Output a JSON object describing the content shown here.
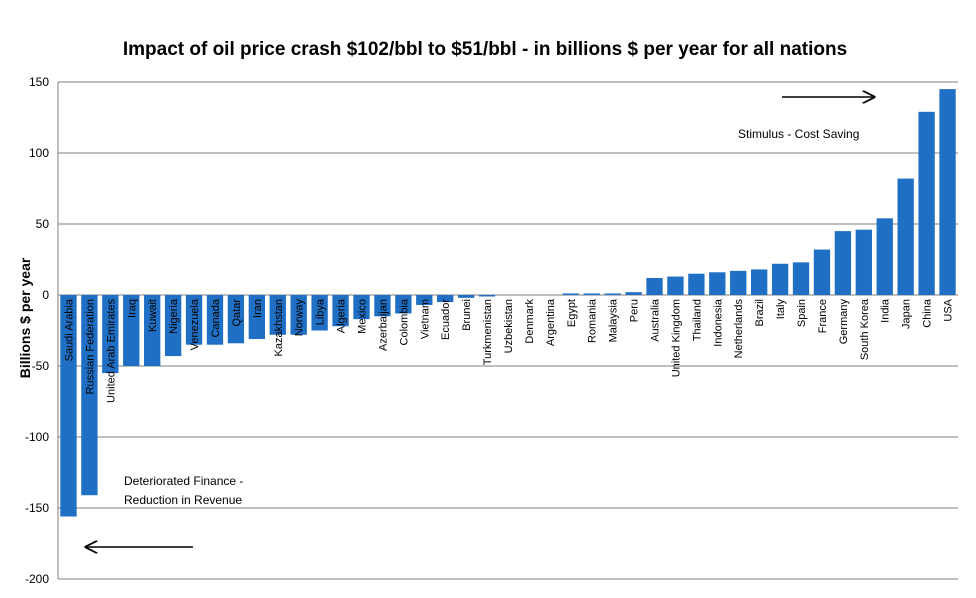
{
  "chart_data": {
    "type": "bar",
    "title": "Impact of oil price crash $102/bbl to  $51/bbl - in billions $ per year for all nations",
    "xlabel": "",
    "ylabel": "Billions $ per year",
    "ylim": [
      -200,
      150
    ],
    "yticks": [
      150,
      100,
      50,
      0,
      -50,
      -100,
      -150,
      -200
    ],
    "grid": true,
    "legend": "none",
    "bar_color": "#1F6FC5",
    "categories": [
      "Saudi Arabia",
      "Russian Federation",
      "United Arab Emirates",
      "Iraq",
      "Kuwait",
      "Nigeria",
      "Venezuela",
      "Canada",
      "Qatar",
      "Iran",
      "Kazakhstan",
      "Norway",
      "Libya",
      "Algeria",
      "Mexico",
      "Azerbaijan",
      "Colombia",
      "Vietnam",
      "Ecuador",
      "Brunei",
      "Turkmenistan",
      "Uzbekistan",
      "Denmark",
      "Argentina",
      "Egypt",
      "Romania",
      "Malaysia",
      "Peru",
      "Australia",
      "United Kingdom",
      "Thailand",
      "Indonesia",
      "Netherlands",
      "Brazil",
      "Italy",
      "Spain",
      "France",
      "Germany",
      "South Korea",
      "India",
      "Japan",
      "China",
      "USA"
    ],
    "values": [
      -156,
      -141,
      -55,
      -50,
      -50,
      -43,
      -35,
      -35,
      -34,
      -31,
      -28,
      -28,
      -25,
      -22,
      -17,
      -15,
      -13,
      -7,
      -5,
      -2,
      -1,
      0,
      0,
      0,
      1,
      1,
      1,
      2,
      12,
      13,
      15,
      16,
      17,
      18,
      22,
      23,
      32,
      45,
      46,
      54,
      82,
      129,
      145
    ],
    "annotations": [
      {
        "text": "Stimulus - Cost Saving",
        "arrow": "right"
      },
      {
        "text": "Deteriorated Finance -",
        "text2": "Reduction in Revenue",
        "arrow": "left"
      }
    ]
  }
}
